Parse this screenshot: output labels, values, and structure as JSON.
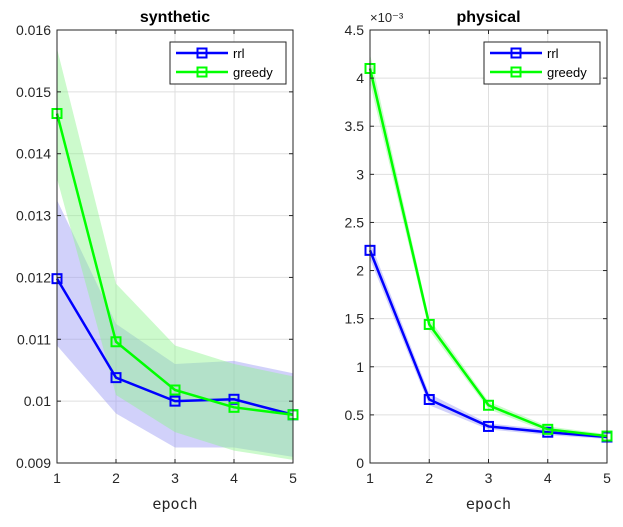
{
  "chart_data": [
    {
      "type": "line",
      "title": "synthetic",
      "xlabel": "epoch",
      "ylabel": "",
      "xlim": [
        1,
        5
      ],
      "ylim": [
        0.009,
        0.016
      ],
      "x": [
        1,
        2,
        3,
        4,
        5
      ],
      "xticks": [
        "1",
        "2",
        "3",
        "4",
        "5"
      ],
      "yticks": [
        {
          "value": 0.009,
          "label": "0.009"
        },
        {
          "value": 0.01,
          "label": "0.01"
        },
        {
          "value": 0.011,
          "label": "0.011"
        },
        {
          "value": 0.012,
          "label": "0.012"
        },
        {
          "value": 0.013,
          "label": "0.013"
        },
        {
          "value": 0.014,
          "label": "0.014"
        },
        {
          "value": 0.015,
          "label": "0.015"
        },
        {
          "value": 0.016,
          "label": "0.016"
        }
      ],
      "exponent": "",
      "grid": true,
      "legend_position": "top-right",
      "series": [
        {
          "name": "rrl",
          "color": "#0000ff",
          "band_color": "#9a9af4",
          "values": [
            0.01198,
            0.01038,
            0.01,
            0.01003,
            0.00978
          ],
          "upper": [
            0.01325,
            0.01125,
            0.0106,
            0.01065,
            0.01045
          ],
          "lower": [
            0.0109,
            0.0098,
            0.00925,
            0.00925,
            0.0091
          ]
        },
        {
          "name": "greedy",
          "color": "#00ff00",
          "band_color": "#8ff58f",
          "values": [
            0.01465,
            0.01096,
            0.01018,
            0.0099,
            0.00978
          ],
          "upper": [
            0.0157,
            0.0119,
            0.0109,
            0.0106,
            0.0104
          ],
          "lower": [
            0.0136,
            0.0101,
            0.0095,
            0.0092,
            0.00905
          ]
        }
      ]
    },
    {
      "type": "line",
      "title": "physical",
      "xlabel": "epoch",
      "ylabel": "",
      "xlim": [
        1,
        5
      ],
      "ylim": [
        0,
        4.5
      ],
      "x": [
        1,
        2,
        3,
        4,
        5
      ],
      "xticks": [
        "1",
        "2",
        "3",
        "4",
        "5"
      ],
      "yticks": [
        {
          "value": 0,
          "label": "0"
        },
        {
          "value": 0.5,
          "label": "0.5"
        },
        {
          "value": 1,
          "label": "1"
        },
        {
          "value": 1.5,
          "label": "1.5"
        },
        {
          "value": 2,
          "label": "2"
        },
        {
          "value": 2.5,
          "label": "2.5"
        },
        {
          "value": 3,
          "label": "3"
        },
        {
          "value": 3.5,
          "label": "3.5"
        },
        {
          "value": 4,
          "label": "4"
        },
        {
          "value": 4.5,
          "label": "4.5"
        }
      ],
      "exponent": "×10⁻³",
      "grid": true,
      "legend_position": "top-right",
      "series": [
        {
          "name": "rrl",
          "color": "#0000ff",
          "band_color": "#9a9af4",
          "values": [
            2.21,
            0.66,
            0.38,
            0.32,
            0.27
          ],
          "upper": [
            2.3,
            0.72,
            0.41,
            0.35,
            0.29
          ],
          "lower": [
            2.12,
            0.6,
            0.35,
            0.29,
            0.25
          ]
        },
        {
          "name": "greedy",
          "color": "#00ff00",
          "band_color": "#8ff58f",
          "values": [
            4.1,
            1.44,
            0.6,
            0.35,
            0.28
          ],
          "upper": [
            4.25,
            1.5,
            0.64,
            0.38,
            0.3
          ],
          "lower": [
            3.95,
            1.38,
            0.56,
            0.32,
            0.26
          ]
        }
      ]
    }
  ]
}
